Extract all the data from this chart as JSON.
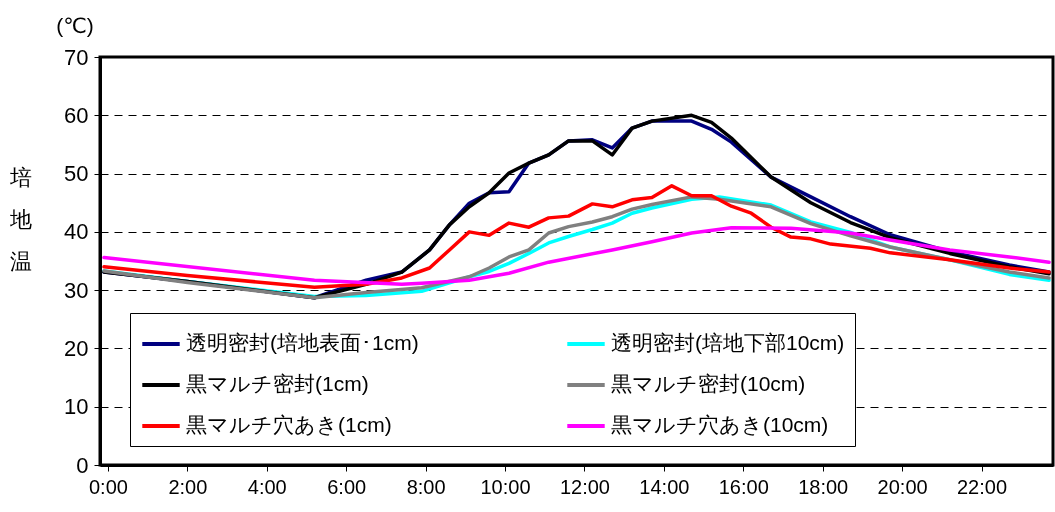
{
  "chart_data": {
    "type": "line",
    "ylabel": "培地温",
    "annotations": [
      "(℃)"
    ],
    "xlim": [
      -0.2,
      23.8
    ],
    "xticks": [
      {
        "value": 0,
        "label": "0:00"
      },
      {
        "value": 2,
        "label": "2:00"
      },
      {
        "value": 4,
        "label": "4:00"
      },
      {
        "value": 6,
        "label": "6:00"
      },
      {
        "value": 8,
        "label": "8:00"
      },
      {
        "value": 10,
        "label": "10:00"
      },
      {
        "value": 12,
        "label": "12:00"
      },
      {
        "value": 14,
        "label": "14:00"
      },
      {
        "value": 16,
        "label": "16:00"
      },
      {
        "value": 18,
        "label": "18:00"
      },
      {
        "value": 20,
        "label": "20:00"
      },
      {
        "value": 22,
        "label": "22:00"
      }
    ],
    "ylim": [
      0,
      70
    ],
    "yticks": [
      0,
      10,
      20,
      30,
      40,
      50,
      60,
      70
    ],
    "grid": "y",
    "legend": "bottom",
    "line_style": "solid",
    "series": [
      {
        "name": "透明密封(培地表面･1cm)",
        "color": "#000080",
        "x": [
          -0.1,
          2,
          5.2,
          6.5,
          7.4,
          8.1,
          8.6,
          9.1,
          9.6,
          10.1,
          10.6,
          11.1,
          11.6,
          12.2,
          12.7,
          13.2,
          13.7,
          14.7,
          15.2,
          15.7,
          16.7,
          17.7,
          18.7,
          19.7,
          21.2,
          22.7,
          23.7
        ],
        "values": [
          33.1,
          31.5,
          28.7,
          31.7,
          33.1,
          36.9,
          41.2,
          44.9,
          46.7,
          46.9,
          51.8,
          53.2,
          55.6,
          55.8,
          54.4,
          57.8,
          59.0,
          59.0,
          57.6,
          55.4,
          49.4,
          46.0,
          42.6,
          39.5,
          36.6,
          34.3,
          33.1
        ]
      },
      {
        "name": "透明密封(培地下部10cm)",
        "color": "#00ffff",
        "x": [
          -0.1,
          2,
          5.2,
          6.5,
          7.9,
          9.1,
          9.6,
          10.1,
          10.6,
          11.1,
          11.6,
          12.2,
          12.7,
          13.2,
          13.7,
          14.7,
          15.4,
          16.7,
          17.7,
          18.7,
          19.7,
          21.2,
          22.7,
          23.7
        ],
        "values": [
          33.3,
          31.5,
          28.9,
          29.1,
          29.8,
          32.3,
          33.2,
          34.6,
          36.3,
          38.1,
          39.2,
          40.4,
          41.5,
          43.2,
          44.1,
          45.6,
          46.0,
          44.6,
          41.7,
          39.9,
          37.4,
          35.2,
          32.7,
          31.7
        ]
      },
      {
        "name": "黒マルチ密封(1cm)",
        "color": "#000000",
        "x": [
          -0.1,
          2,
          5.2,
          6.5,
          7.4,
          8.1,
          8.6,
          9.1,
          9.6,
          10.1,
          10.6,
          11.1,
          11.6,
          12.2,
          12.7,
          13.2,
          13.7,
          14.7,
          15.2,
          15.7,
          16.7,
          17.7,
          18.7,
          19.7,
          21.2,
          22.7,
          23.7
        ],
        "values": [
          33.1,
          31.5,
          28.7,
          31.0,
          33.1,
          36.9,
          41.2,
          44.3,
          46.7,
          50.1,
          51.8,
          53.2,
          55.6,
          55.6,
          53.2,
          57.8,
          59.0,
          60.0,
          58.8,
          56.1,
          49.4,
          45.0,
          41.6,
          39.0,
          36.3,
          34.0,
          32.8
        ]
      },
      {
        "name": "黒マルチ密封(10cm)",
        "color": "#808080",
        "x": [
          -0.1,
          2,
          5.2,
          6.5,
          7.9,
          9.1,
          9.6,
          10.1,
          10.6,
          11.1,
          11.6,
          12.2,
          12.7,
          13.2,
          13.7,
          14.7,
          15.4,
          16.7,
          17.7,
          18.7,
          19.7,
          21.2,
          22.7,
          23.7
        ],
        "values": [
          33.3,
          31.3,
          28.7,
          29.6,
          30.4,
          32.3,
          33.8,
          35.7,
          36.9,
          39.8,
          40.9,
          41.7,
          42.6,
          43.9,
          44.7,
          46.0,
          45.6,
          44.3,
          41.4,
          39.3,
          37.4,
          35.2,
          33.1,
          32.1
        ]
      },
      {
        "name": "黒マルチ穴あき(1cm)",
        "color": "#ff0000",
        "x": [
          -0.1,
          2,
          5.2,
          6.5,
          7.4,
          8.1,
          8.6,
          9.1,
          9.6,
          10.1,
          10.6,
          11.1,
          11.6,
          12.2,
          12.7,
          13.2,
          13.7,
          14.2,
          14.7,
          15.2,
          15.7,
          16.2,
          16.7,
          17.2,
          17.7,
          18.2,
          19.2,
          19.7,
          21.2,
          22.7,
          23.7
        ],
        "values": [
          34.0,
          32.5,
          30.5,
          31.0,
          32.1,
          33.8,
          36.9,
          40.0,
          39.4,
          41.5,
          40.8,
          42.4,
          42.7,
          44.8,
          44.3,
          45.5,
          45.9,
          47.9,
          46.2,
          46.2,
          44.4,
          43.2,
          40.8,
          39.1,
          38.8,
          37.9,
          37.2,
          36.4,
          35.2,
          33.8,
          33.1
        ]
      },
      {
        "name": "黒マルチ穴あき(10cm)",
        "color": "#ff00ff",
        "x": [
          -0.1,
          5.2,
          7.4,
          7.9,
          9.1,
          10.1,
          11.1,
          12.7,
          13.7,
          14.7,
          15.7,
          17.2,
          18.7,
          19.7,
          21.2,
          22.7,
          23.7
        ],
        "values": [
          35.6,
          31.7,
          31.0,
          31.2,
          31.7,
          32.9,
          34.8,
          36.9,
          38.3,
          39.8,
          40.7,
          40.6,
          39.8,
          38.6,
          36.9,
          35.7,
          34.8
        ]
      }
    ]
  }
}
